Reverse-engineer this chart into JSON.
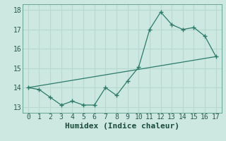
{
  "xlabel": "Humidex (Indice chaleur)",
  "ylabel": "",
  "background_color": "#cce8e0",
  "grid_color": "#b8d8d0",
  "line_color": "#2d7a6a",
  "marker_color": "#2d7a6a",
  "xlim": [
    -0.5,
    17.5
  ],
  "ylim": [
    12.7,
    18.3
  ],
  "xticks": [
    0,
    1,
    2,
    3,
    4,
    5,
    6,
    7,
    8,
    9,
    10,
    11,
    12,
    13,
    14,
    15,
    16,
    17
  ],
  "yticks": [
    13,
    14,
    15,
    16,
    17,
    18
  ],
  "curve1_x": [
    0,
    1,
    2,
    3,
    4,
    5,
    6,
    7,
    8,
    9,
    10,
    11,
    12,
    13,
    14,
    15,
    16,
    17
  ],
  "curve1_y": [
    14.0,
    13.9,
    13.5,
    13.1,
    13.3,
    13.1,
    13.1,
    14.0,
    13.6,
    14.35,
    15.05,
    17.0,
    17.9,
    17.25,
    17.0,
    17.1,
    16.65,
    15.6
  ],
  "curve2_x": [
    0,
    17
  ],
  "curve2_y": [
    14.0,
    15.6
  ],
  "fontsize_tick": 7,
  "fontsize_label": 8
}
